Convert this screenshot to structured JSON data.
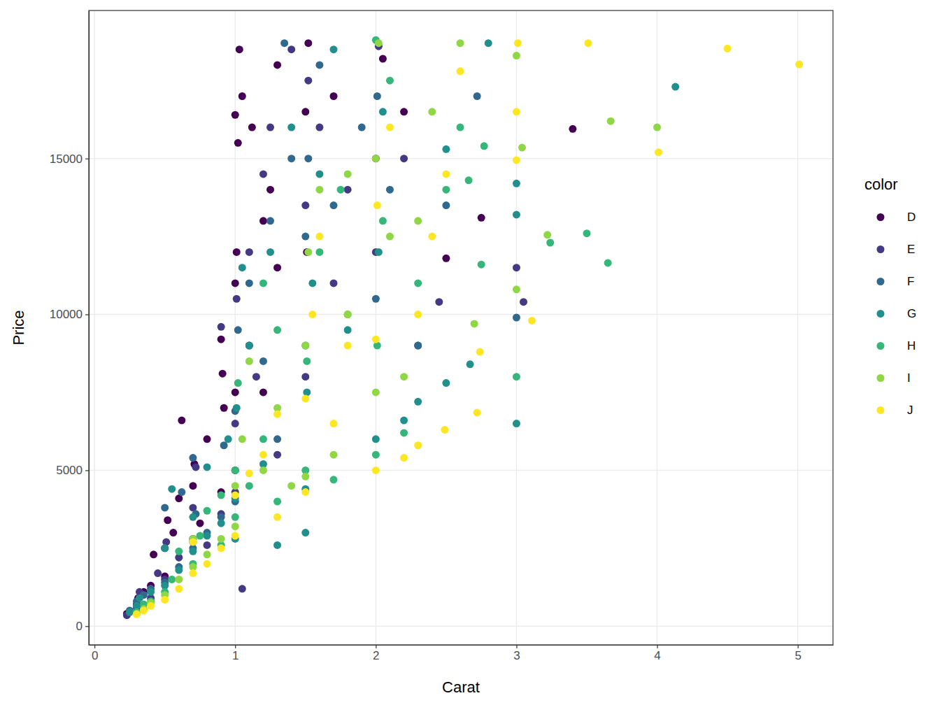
{
  "chart_data": {
    "type": "scatter",
    "x_label": "Carat",
    "y_label": "Price",
    "legend_title": "color",
    "legend": "right",
    "grid": true,
    "marker": "circle",
    "xlim": [
      -0.0405,
      5.2505
    ],
    "ylim": [
      -599,
      19748
    ],
    "xticks": [
      0,
      1,
      2,
      3,
      4,
      5
    ],
    "yticks": [
      0,
      5000,
      10000,
      15000
    ],
    "series": [
      {
        "name": "D",
        "color": "#440154",
        "x": [
          0.23,
          0.3,
          0.31,
          0.35,
          0.4,
          0.42,
          0.5,
          0.5,
          0.52,
          0.56,
          0.6,
          0.62,
          0.7,
          0.7,
          0.71,
          0.75,
          0.8,
          0.9,
          0.9,
          0.92,
          1.0,
          1.0,
          1.0,
          1.01,
          1.02,
          1.03,
          1.05,
          1.1,
          1.12,
          1.2,
          1.2,
          1.3,
          1.3,
          1.5,
          1.51,
          1.52,
          1.7,
          2.0,
          2.05,
          2.2,
          2.5,
          2.75,
          3.4,
          1.0,
          0.91,
          1.25
        ],
        "values": [
          400,
          700,
          900,
          1100,
          1300,
          2300,
          1600,
          2500,
          3400,
          3000,
          4100,
          6600,
          2800,
          4500,
          5200,
          3300,
          6000,
          4300,
          9200,
          7000,
          5000,
          7500,
          11000,
          12000,
          15500,
          18500,
          17000,
          9000,
          16000,
          13000,
          7500,
          18000,
          11500,
          16500,
          12000,
          18700,
          17000,
          15000,
          18200,
          16500,
          11800,
          13100,
          15950,
          16400,
          8100,
          14000
        ]
      },
      {
        "name": "E",
        "color": "#443A83",
        "x": [
          0.23,
          0.3,
          0.32,
          0.4,
          0.45,
          0.5,
          0.51,
          0.6,
          0.7,
          0.7,
          0.72,
          0.9,
          0.9,
          1.0,
          1.0,
          1.01,
          1.1,
          1.15,
          1.2,
          1.3,
          1.4,
          1.5,
          1.5,
          1.52,
          1.6,
          1.7,
          1.8,
          2.0,
          2.02,
          2.2,
          2.3,
          2.45,
          3.0,
          3.05,
          1.05,
          0.8,
          1.25
        ],
        "values": [
          350,
          600,
          1100,
          900,
          1700,
          1500,
          2700,
          2200,
          2700,
          3800,
          5100,
          3600,
          9600,
          4300,
          6500,
          10500,
          12000,
          8000,
          14500,
          5500,
          18500,
          8000,
          13500,
          17500,
          16000,
          11000,
          14000,
          12000,
          18600,
          15000,
          9000,
          10400,
          11500,
          10400,
          1200,
          2600,
          16000
        ]
      },
      {
        "name": "F",
        "color": "#31688E",
        "x": [
          0.25,
          0.3,
          0.35,
          0.4,
          0.5,
          0.5,
          0.6,
          0.62,
          0.7,
          0.72,
          0.8,
          0.9,
          0.92,
          1.0,
          1.0,
          1.02,
          1.1,
          1.2,
          1.25,
          1.3,
          1.35,
          1.5,
          1.5,
          1.52,
          1.6,
          1.7,
          1.9,
          2.0,
          2.01,
          2.1,
          2.3,
          2.5,
          2.72,
          3.0,
          0.7,
          1.4
        ],
        "values": [
          500,
          800,
          1000,
          1200,
          1400,
          3800,
          1900,
          4300,
          2500,
          3600,
          3000,
          3500,
          5800,
          4000,
          6900,
          9500,
          11000,
          8500,
          13000,
          6000,
          18700,
          9000,
          12500,
          15000,
          18000,
          13500,
          16000,
          10500,
          17000,
          14000,
          9000,
          13500,
          17000,
          9900,
          5400,
          15000
        ]
      },
      {
        "name": "G",
        "color": "#21908C",
        "x": [
          0.25,
          0.3,
          0.32,
          0.4,
          0.5,
          0.5,
          0.55,
          0.6,
          0.7,
          0.7,
          0.8,
          0.8,
          0.9,
          0.95,
          1.0,
          1.01,
          1.05,
          1.1,
          1.2,
          1.25,
          1.3,
          1.4,
          1.5,
          1.51,
          1.55,
          1.6,
          1.7,
          1.8,
          2.0,
          2.02,
          2.05,
          2.2,
          2.3,
          2.5,
          2.5,
          2.67,
          2.8,
          3.0,
          3.0,
          3.0,
          4.13,
          1.0,
          1.5
        ],
        "values": [
          450,
          650,
          900,
          1100,
          1300,
          2500,
          4400,
          1800,
          2400,
          3500,
          2900,
          5100,
          3300,
          6000,
          4100,
          7000,
          11500,
          9000,
          5200,
          12000,
          2600,
          16000,
          3000,
          7500,
          11000,
          14500,
          18500,
          9500,
          6000,
          12000,
          16500,
          6600,
          7200,
          15300,
          7800,
          8400,
          18700,
          6500,
          13200,
          14200,
          17300,
          2800,
          4400
        ]
      },
      {
        "name": "H",
        "color": "#35B779",
        "x": [
          0.3,
          0.35,
          0.4,
          0.5,
          0.55,
          0.6,
          0.7,
          0.75,
          0.8,
          0.9,
          0.9,
          1.0,
          1.0,
          1.02,
          1.1,
          1.2,
          1.3,
          1.3,
          1.5,
          1.51,
          1.6,
          1.7,
          1.75,
          1.8,
          2.0,
          2.01,
          2.05,
          2.1,
          2.2,
          2.3,
          2.5,
          2.6,
          2.66,
          2.75,
          2.77,
          3.0,
          3.5,
          3.65,
          3.24,
          2.0,
          1.2
        ],
        "values": [
          450,
          700,
          800,
          1100,
          1500,
          2400,
          2000,
          2900,
          3700,
          2600,
          4200,
          3500,
          5000,
          7800,
          4500,
          6000,
          4000,
          9500,
          5000,
          8500,
          12000,
          4700,
          14000,
          10000,
          5500,
          9000,
          13000,
          17500,
          6200,
          11000,
          14000,
          16000,
          14300,
          11600,
          15400,
          8000,
          12600,
          11650,
          12300,
          18800,
          11000
        ]
      },
      {
        "name": "I",
        "color": "#8FD744",
        "x": [
          0.3,
          0.35,
          0.4,
          0.5,
          0.6,
          0.7,
          0.7,
          0.8,
          0.9,
          1.0,
          1.0,
          1.05,
          1.1,
          1.2,
          1.3,
          1.4,
          1.5,
          1.5,
          1.52,
          1.6,
          1.7,
          1.8,
          2.0,
          2.0,
          2.02,
          2.1,
          2.2,
          2.3,
          2.4,
          2.6,
          2.7,
          3.0,
          3.0,
          3.04,
          3.22,
          3.67,
          4.0,
          1.8
        ],
        "values": [
          400,
          550,
          750,
          1000,
          1500,
          1900,
          2800,
          2300,
          2800,
          3200,
          4500,
          6000,
          8500,
          5000,
          7000,
          4500,
          4800,
          9000,
          12000,
          14000,
          5500,
          10000,
          7500,
          15000,
          18700,
          12500,
          8000,
          13000,
          16500,
          18700,
          9700,
          10800,
          18300,
          15350,
          12550,
          16200,
          16000,
          14500
        ]
      },
      {
        "name": "J",
        "color": "#FDE725",
        "x": [
          0.3,
          0.35,
          0.4,
          0.5,
          0.6,
          0.7,
          0.7,
          0.8,
          0.9,
          1.0,
          1.0,
          1.1,
          1.2,
          1.3,
          1.3,
          1.5,
          1.5,
          1.55,
          1.6,
          1.7,
          1.8,
          2.0,
          2.0,
          2.01,
          2.1,
          2.2,
          2.3,
          2.4,
          2.49,
          2.5,
          2.6,
          2.72,
          2.74,
          3.0,
          3.0,
          3.01,
          3.11,
          3.51,
          4.01,
          4.5,
          5.01,
          2.3
        ],
        "values": [
          380,
          500,
          650,
          850,
          1200,
          1700,
          2700,
          2000,
          2500,
          2900,
          4200,
          4900,
          5500,
          3500,
          6800,
          4300,
          7300,
          10000,
          12500,
          6500,
          9000,
          5000,
          9200,
          13500,
          16000,
          5400,
          10000,
          12500,
          6300,
          14500,
          17800,
          6850,
          8800,
          14950,
          16500,
          18700,
          9800,
          18700,
          15200,
          18530,
          18020,
          5800
        ]
      }
    ]
  }
}
